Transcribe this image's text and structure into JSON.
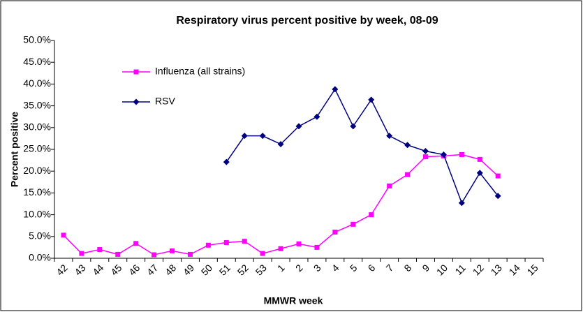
{
  "chart_data": {
    "type": "line",
    "title": "Respiratory virus percent positive by week, 08-09",
    "xlabel": "MMWR week",
    "ylabel": "Percent positive",
    "categories": [
      "42",
      "43",
      "44",
      "45",
      "46",
      "47",
      "48",
      "49",
      "50",
      "51",
      "52",
      "53",
      "1",
      "2",
      "3",
      "4",
      "5",
      "6",
      "7",
      "8",
      "9",
      "10",
      "11",
      "12",
      "13",
      "14",
      "15"
    ],
    "series": [
      {
        "name": "Influenza (all strains)",
        "color": "#ff00ff",
        "marker": "square",
        "values": [
          5.3,
          1.1,
          2.0,
          0.9,
          3.4,
          0.8,
          1.7,
          0.9,
          3.0,
          3.6,
          3.9,
          1.1,
          2.2,
          3.3,
          2.5,
          6.0,
          7.8,
          10.0,
          16.6,
          19.2,
          23.3,
          23.5,
          23.8,
          22.7,
          18.9,
          null,
          null
        ]
      },
      {
        "name": "RSV",
        "color": "#000080",
        "marker": "diamond",
        "values": [
          null,
          null,
          null,
          null,
          null,
          null,
          null,
          null,
          null,
          22.1,
          28.1,
          28.1,
          26.2,
          30.3,
          32.5,
          38.8,
          30.3,
          36.4,
          28.1,
          26.0,
          24.6,
          23.8,
          12.7,
          19.6,
          14.3,
          null,
          null
        ]
      }
    ],
    "ylim": [
      0,
      50
    ],
    "yticks": [
      {
        "value": 0,
        "label": "0.0%"
      },
      {
        "value": 5,
        "label": "5.0%"
      },
      {
        "value": 10,
        "label": "10.0%"
      },
      {
        "value": 15,
        "label": "15.0%"
      },
      {
        "value": 20,
        "label": "20.0%"
      },
      {
        "value": 25,
        "label": "25.0%"
      },
      {
        "value": 30,
        "label": "30.0%"
      },
      {
        "value": 35,
        "label": "35.0%"
      },
      {
        "value": 40,
        "label": "40.0%"
      },
      {
        "value": 45,
        "label": "45.0%"
      },
      {
        "value": 50,
        "label": "50.0%"
      }
    ],
    "grid": false,
    "legend": "upper left"
  }
}
